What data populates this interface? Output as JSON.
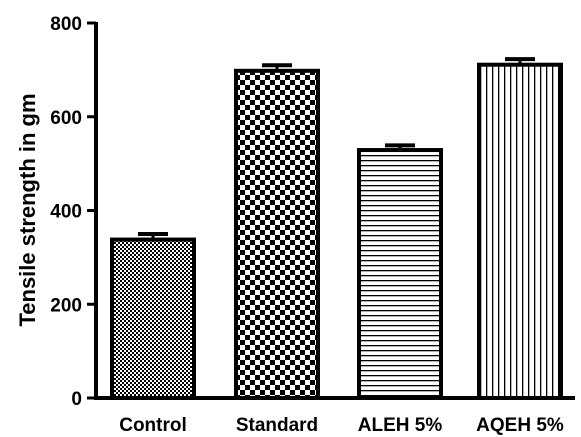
{
  "chart_data": {
    "type": "bar",
    "title": "",
    "xlabel": "",
    "ylabel": "Tensile strength in gm",
    "categories": [
      "Control",
      "Standard",
      "ALEH 5%",
      "AQEH 5%"
    ],
    "values": [
      338,
      698,
      529,
      711
    ],
    "errors": [
      12,
      12,
      10,
      12
    ],
    "ylim": [
      0,
      800
    ],
    "yticks": [
      0,
      200,
      400,
      600,
      800
    ],
    "ytick_labels": [
      "0",
      "200",
      "400",
      "600",
      "800"
    ],
    "patterns": [
      "fine-check",
      "checker",
      "horizontal-lines",
      "vertical-lines"
    ],
    "grid": false,
    "legend": "none",
    "colors": {
      "bar_stroke": "#000000",
      "fill_background": "#ffffff"
    }
  }
}
